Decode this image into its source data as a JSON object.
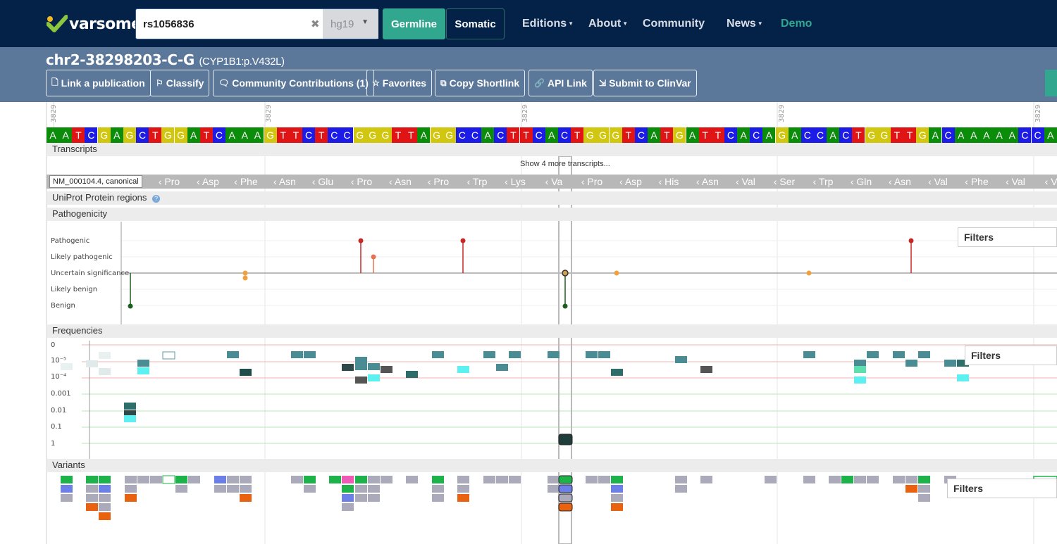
{
  "nav": {
    "logo": "varsome",
    "search_value": "rs1056836",
    "assembly": "hg19",
    "germline": "Germline",
    "somatic": "Somatic",
    "editions": "Editions",
    "about": "About",
    "community": "Community",
    "news": "News",
    "demo": "Demo"
  },
  "variant": {
    "title": "chr2-38298203-C-G",
    "subtitle": "(CYP1B1:p.V432L)"
  },
  "actions": [
    {
      "label": "Link a publication",
      "icon": "document-icon"
    },
    {
      "label": "Classify",
      "icon": "flag-icon"
    },
    {
      "label": "Community Contributions (1)",
      "icon": "comments-icon"
    },
    {
      "label": "Favorites",
      "icon": "star-icon"
    },
    {
      "label": "Copy Shortlink",
      "icon": "copy-icon"
    },
    {
      "label": "API Link",
      "icon": "link-icon"
    },
    {
      "label": "Submit to ClinVar",
      "icon": "submit-icon"
    }
  ],
  "ruler_labels": [
    "3829",
    "3829",
    "3829",
    "3829",
    "3829"
  ],
  "sequence": "AATCGAGCTGGATCAAAGTTCTCCGGGTTAGGCCACTTCACTGGGTCATGATTCACAGACCACTGGTTGACAAAAACCA",
  "base_colors": {
    "A": "#0b8c0b",
    "T": "#e01414",
    "C": "#1c1ce6",
    "G": "#d2c710"
  },
  "transcripts": {
    "title": "Transcripts",
    "show_more": "Show 4 more transcripts...",
    "canonical_label": "NM_000104.4, canonical",
    "amino_acids": [
      "Pro",
      "Asp",
      "Phe",
      "Asn",
      "Glu",
      "Pro",
      "Asn",
      "Pro",
      "Trp",
      "Lys",
      "Va",
      "Pro",
      "Asp",
      "His",
      "Asn",
      "Val",
      "Ser",
      "Trp",
      "Gln",
      "Asn",
      "Val",
      "Phe",
      "Val",
      "Va"
    ]
  },
  "uniprot": {
    "title": "UniProt Protein regions",
    "help_icon": "info-icon"
  },
  "pathogenicity": {
    "title": "Pathogenicity",
    "levels": [
      "Pathogenic",
      "Likely pathogenic",
      "Uncertain significance",
      "Likely benign",
      "Benign"
    ],
    "filters": "Filters"
  },
  "frequencies": {
    "title": "Frequencies",
    "ticks": [
      "0",
      "10⁻⁵",
      "10⁻⁴",
      "0.001",
      "0.01",
      "0.1",
      "1"
    ],
    "filters": "Filters"
  },
  "variants": {
    "title": "Variants",
    "filters": "Filters"
  }
}
